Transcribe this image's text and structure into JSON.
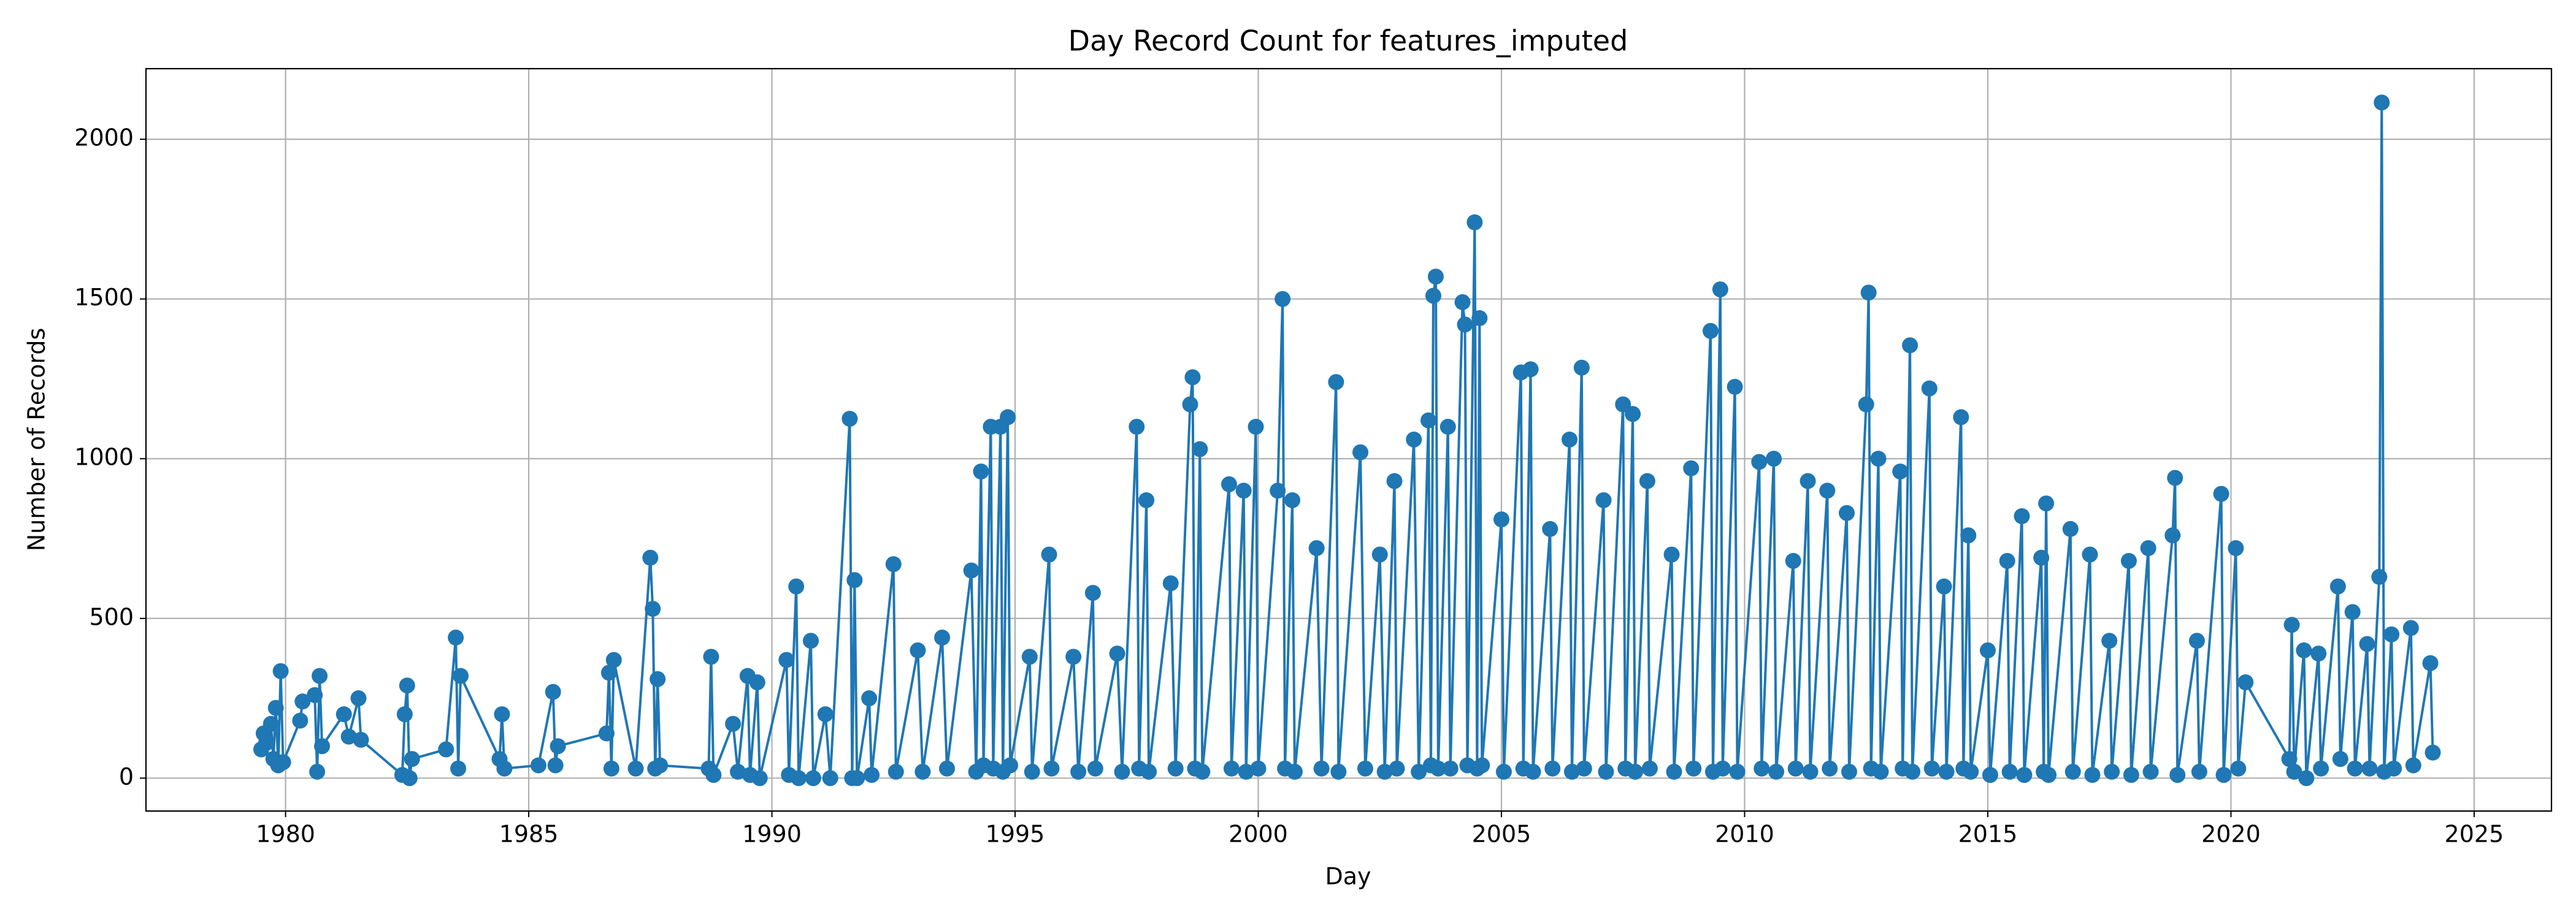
{
  "chart_data": {
    "type": "line",
    "title": "Day Record Count for features_imputed",
    "x_label": "Day",
    "y_label": "Number of Records",
    "x": [
      1979.5,
      1979.55,
      1979.6,
      1979.7,
      1979.75,
      1979.8,
      1979.85,
      1979.9,
      1979.95,
      1980.3,
      1980.35,
      1980.6,
      1980.65,
      1980.7,
      1980.75,
      1981.2,
      1981.3,
      1981.5,
      1981.55,
      1982.4,
      1982.45,
      1982.5,
      1982.55,
      1982.6,
      1983.3,
      1983.5,
      1983.55,
      1983.6,
      1984.4,
      1984.45,
      1984.5,
      1985.2,
      1985.5,
      1985.55,
      1985.6,
      1986.6,
      1986.65,
      1986.7,
      1986.75,
      1987.2,
      1987.5,
      1987.55,
      1987.6,
      1987.65,
      1987.7,
      1988.7,
      1988.75,
      1988.8,
      1989.2,
      1989.3,
      1989.5,
      1989.55,
      1989.7,
      1989.75,
      1990.3,
      1990.35,
      1990.5,
      1990.55,
      1990.8,
      1990.85,
      1991.1,
      1991.2,
      1991.6,
      1991.65,
      1991.7,
      1991.75,
      1992,
      1992.05,
      1992.5,
      1992.55,
      1993,
      1993.1,
      1993.5,
      1993.6,
      1994.1,
      1994.2,
      1994.3,
      1994.35,
      1994.5,
      1994.55,
      1994.7,
      1994.75,
      1994.85,
      1994.9,
      1995.3,
      1995.35,
      1995.7,
      1995.75,
      1996.2,
      1996.3,
      1996.6,
      1996.65,
      1997.1,
      1997.2,
      1997.5,
      1997.55,
      1997.7,
      1997.75,
      1998.2,
      1998.3,
      1998.6,
      1998.65,
      1998.7,
      1998.8,
      1998.85,
      1999.4,
      1999.45,
      1999.7,
      1999.75,
      1999.95,
      2000,
      2000.4,
      2000.5,
      2000.55,
      2000.7,
      2000.75,
      2001.2,
      2001.3,
      2001.6,
      2001.65,
      2002.1,
      2002.2,
      2002.5,
      2002.6,
      2002.8,
      2002.85,
      2003.2,
      2003.3,
      2003.5,
      2003.55,
      2003.6,
      2003.65,
      2003.7,
      2003.9,
      2003.95,
      2004.2,
      2004.25,
      2004.3,
      2004.45,
      2004.5,
      2004.55,
      2004.6,
      2005,
      2005.05,
      2005.4,
      2005.45,
      2005.6,
      2005.65,
      2006,
      2006.05,
      2006.4,
      2006.45,
      2006.65,
      2006.7,
      2007.1,
      2007.15,
      2007.5,
      2007.55,
      2007.7,
      2007.75,
      2008,
      2008.05,
      2008.5,
      2008.55,
      2008.9,
      2008.95,
      2009.3,
      2009.35,
      2009.5,
      2009.55,
      2009.8,
      2009.85,
      2010.3,
      2010.35,
      2010.6,
      2010.65,
      2011,
      2011.05,
      2011.3,
      2011.35,
      2011.7,
      2011.75,
      2012.1,
      2012.15,
      2012.5,
      2012.55,
      2012.6,
      2012.75,
      2012.8,
      2013.2,
      2013.25,
      2013.4,
      2013.45,
      2013.8,
      2013.85,
      2014.1,
      2014.15,
      2014.45,
      2014.5,
      2014.6,
      2014.65,
      2015,
      2015.05,
      2015.4,
      2015.45,
      2015.7,
      2015.75,
      2016.1,
      2016.15,
      2016.2,
      2016.25,
      2016.7,
      2016.75,
      2017.1,
      2017.15,
      2017.5,
      2017.55,
      2017.9,
      2017.95,
      2018.3,
      2018.35,
      2018.8,
      2018.85,
      2018.9,
      2019.3,
      2019.35,
      2019.8,
      2019.85,
      2020.1,
      2020.15,
      2020.3,
      2021.2,
      2021.25,
      2021.3,
      2021.5,
      2021.55,
      2021.8,
      2021.85,
      2022.2,
      2022.25,
      2022.5,
      2022.55,
      2022.8,
      2022.85,
      2023.05,
      2023.1,
      2023.15,
      2023.3,
      2023.35,
      2023.7,
      2023.75,
      2024.1,
      2024.15
    ],
    "series": [
      {
        "name": "Number of Records",
        "color": "#1f77b4",
        "values": [
          90,
          140,
          110,
          170,
          60,
          220,
          40,
          335,
          50,
          180,
          240,
          260,
          20,
          320,
          100,
          200,
          130,
          250,
          120,
          10,
          200,
          290,
          0,
          60,
          90,
          440,
          30,
          320,
          60,
          200,
          30,
          40,
          270,
          40,
          100,
          140,
          330,
          30,
          370,
          30,
          690,
          530,
          30,
          310,
          40,
          30,
          380,
          10,
          170,
          20,
          320,
          10,
          300,
          0,
          370,
          10,
          600,
          0,
          430,
          0,
          200,
          0,
          1125,
          0,
          620,
          0,
          250,
          10,
          670,
          20,
          400,
          20,
          440,
          30,
          650,
          20,
          960,
          40,
          1100,
          30,
          1100,
          20,
          1130,
          40,
          380,
          20,
          700,
          30,
          380,
          20,
          580,
          30,
          390,
          20,
          1100,
          30,
          870,
          20,
          610,
          30,
          1170,
          1255,
          30,
          1030,
          20,
          920,
          30,
          900,
          20,
          1100,
          30,
          900,
          1500,
          30,
          870,
          20,
          720,
          30,
          1240,
          20,
          1020,
          30,
          700,
          20,
          930,
          30,
          1060,
          20,
          1120,
          40,
          1510,
          1570,
          30,
          1100,
          30,
          1490,
          1420,
          40,
          1740,
          30,
          1440,
          40,
          810,
          20,
          1270,
          30,
          1280,
          20,
          780,
          30,
          1060,
          20,
          1285,
          30,
          870,
          20,
          1170,
          30,
          1140,
          20,
          930,
          30,
          700,
          20,
          970,
          30,
          1400,
          20,
          1530,
          30,
          1225,
          20,
          990,
          30,
          1000,
          20,
          680,
          30,
          930,
          20,
          900,
          30,
          830,
          20,
          1170,
          1520,
          30,
          1000,
          20,
          960,
          30,
          1355,
          20,
          1220,
          30,
          600,
          20,
          1130,
          30,
          760,
          20,
          400,
          10,
          680,
          20,
          820,
          10,
          690,
          20,
          860,
          10,
          780,
          20,
          700,
          10,
          430,
          20,
          680,
          10,
          720,
          20,
          760,
          940,
          10,
          430,
          20,
          890,
          10,
          720,
          30,
          300,
          60,
          480,
          20,
          400,
          0,
          390,
          30,
          600,
          60,
          520,
          30,
          420,
          30,
          630,
          2115,
          20,
          450,
          30,
          470,
          40,
          360,
          80
        ]
      }
    ],
    "xlim": [
      1977.13,
      2026.59
    ],
    "ylim": [
      -103,
      2221
    ],
    "xticks": [
      1980,
      1985,
      1990,
      1995,
      2000,
      2005,
      2010,
      2015,
      2020,
      2025
    ],
    "yticks": [
      0,
      500,
      1000,
      1500,
      2000
    ],
    "grid": true
  }
}
